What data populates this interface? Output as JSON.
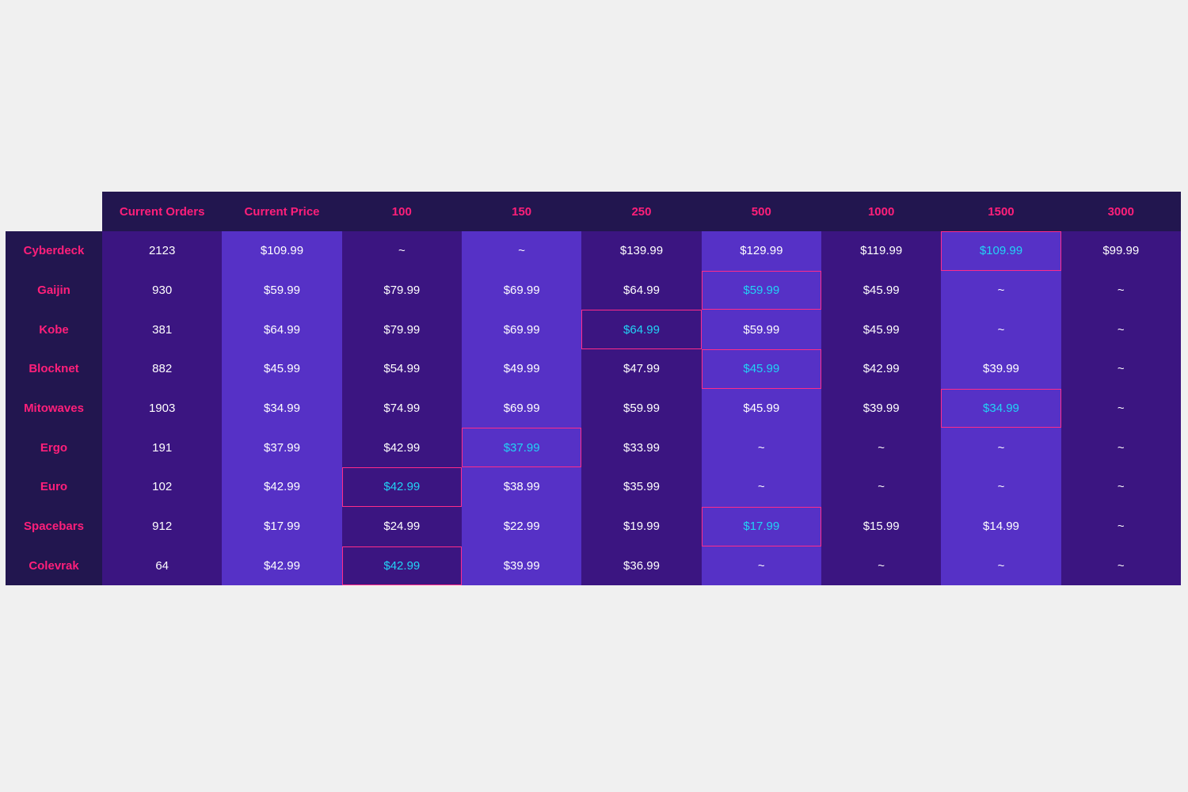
{
  "chart_data": {
    "type": "table",
    "columns": [
      "Current Orders",
      "Current Price",
      "100",
      "150",
      "250",
      "500",
      "1000",
      "1500",
      "3000"
    ],
    "rows": [
      {
        "label": "Cyberdeck",
        "values": [
          "2123",
          "$109.99",
          "~",
          "~",
          "$139.99",
          "$129.99",
          "$119.99",
          "$109.99",
          "$99.99"
        ],
        "highlight_column": 7
      },
      {
        "label": "Gaijin",
        "values": [
          "930",
          "$59.99",
          "$79.99",
          "$69.99",
          "$64.99",
          "$59.99",
          "$45.99",
          "~",
          "~"
        ],
        "highlight_column": 5
      },
      {
        "label": "Kobe",
        "values": [
          "381",
          "$64.99",
          "$79.99",
          "$69.99",
          "$64.99",
          "$59.99",
          "$45.99",
          "~",
          "~"
        ],
        "highlight_column": 4
      },
      {
        "label": "Blocknet",
        "values": [
          "882",
          "$45.99",
          "$54.99",
          "$49.99",
          "$47.99",
          "$45.99",
          "$42.99",
          "$39.99",
          "~"
        ],
        "highlight_column": 5
      },
      {
        "label": "Mitowaves",
        "values": [
          "1903",
          "$34.99",
          "$74.99",
          "$69.99",
          "$59.99",
          "$45.99",
          "$39.99",
          "$34.99",
          "~"
        ],
        "highlight_column": 7
      },
      {
        "label": "Ergo",
        "values": [
          "191",
          "$37.99",
          "$42.99",
          "$37.99",
          "$33.99",
          "~",
          "~",
          "~",
          "~"
        ],
        "highlight_column": 3
      },
      {
        "label": "Euro",
        "values": [
          "102",
          "$42.99",
          "$42.99",
          "$38.99",
          "$35.99",
          "~",
          "~",
          "~",
          "~"
        ],
        "highlight_column": 2
      },
      {
        "label": "Spacebars",
        "values": [
          "912",
          "$17.99",
          "$24.99",
          "$22.99",
          "$19.99",
          "$17.99",
          "$15.99",
          "$14.99",
          "~"
        ],
        "highlight_column": 5
      },
      {
        "label": "Colevrak",
        "values": [
          "64",
          "$42.99",
          "$42.99",
          "$39.99",
          "$36.99",
          "~",
          "~",
          "~",
          "~"
        ],
        "highlight_column": 2
      }
    ],
    "colors": {
      "header_bg": "#22164f",
      "label_text": "#ff1f7a",
      "column_dark": "#3b1581",
      "column_light": "#5631c6",
      "highlight_text": "#22d3f5",
      "highlight_border": "#ff2b8a",
      "cell_text": "#ffffff"
    }
  }
}
